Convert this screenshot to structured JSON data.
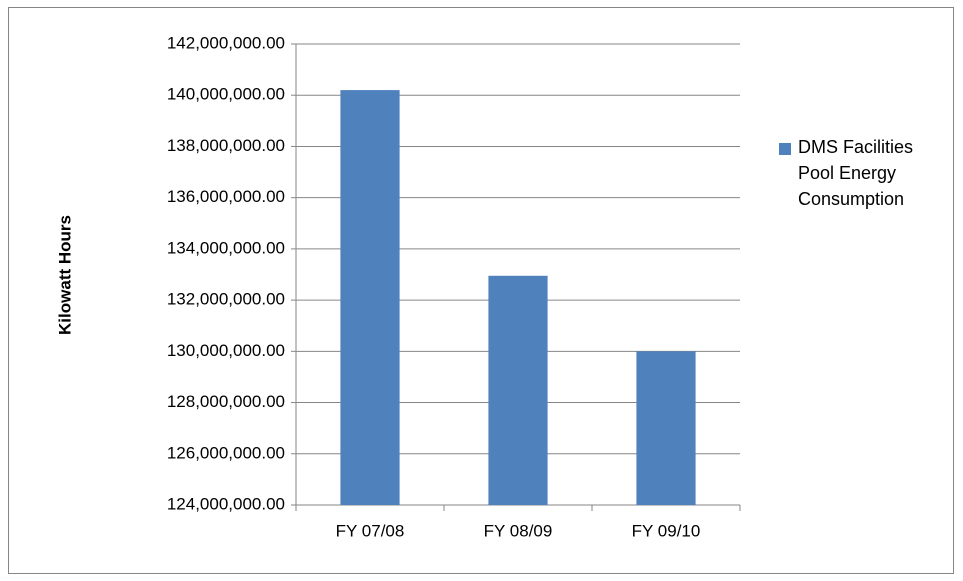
{
  "chart_data": {
    "type": "bar",
    "y_label": "Kilowatt Hours",
    "categories": [
      "FY 07/08",
      "FY 08/09",
      "FY 09/10"
    ],
    "series": [
      {
        "name": "DMS Facilities Pool Energy Consumption",
        "color": "#4f81bd",
        "values": [
          140200000,
          132950000,
          130000000
        ]
      }
    ],
    "ylim": [
      124000000,
      142000000
    ],
    "yticks": [
      {
        "value": 124000000,
        "label": "124,000,000.00"
      },
      {
        "value": 126000000,
        "label": "126,000,000.00"
      },
      {
        "value": 128000000,
        "label": "128,000,000.00"
      },
      {
        "value": 130000000,
        "label": "130,000,000.00"
      },
      {
        "value": 132000000,
        "label": "132,000,000.00"
      },
      {
        "value": 134000000,
        "label": "134,000,000.00"
      },
      {
        "value": 136000000,
        "label": "136,000,000.00"
      },
      {
        "value": 138000000,
        "label": "138,000,000.00"
      },
      {
        "value": 140000000,
        "label": "140,000,000.00"
      },
      {
        "value": 142000000,
        "label": "142,000,000.00"
      }
    ],
    "grid": true,
    "legend": "right"
  }
}
